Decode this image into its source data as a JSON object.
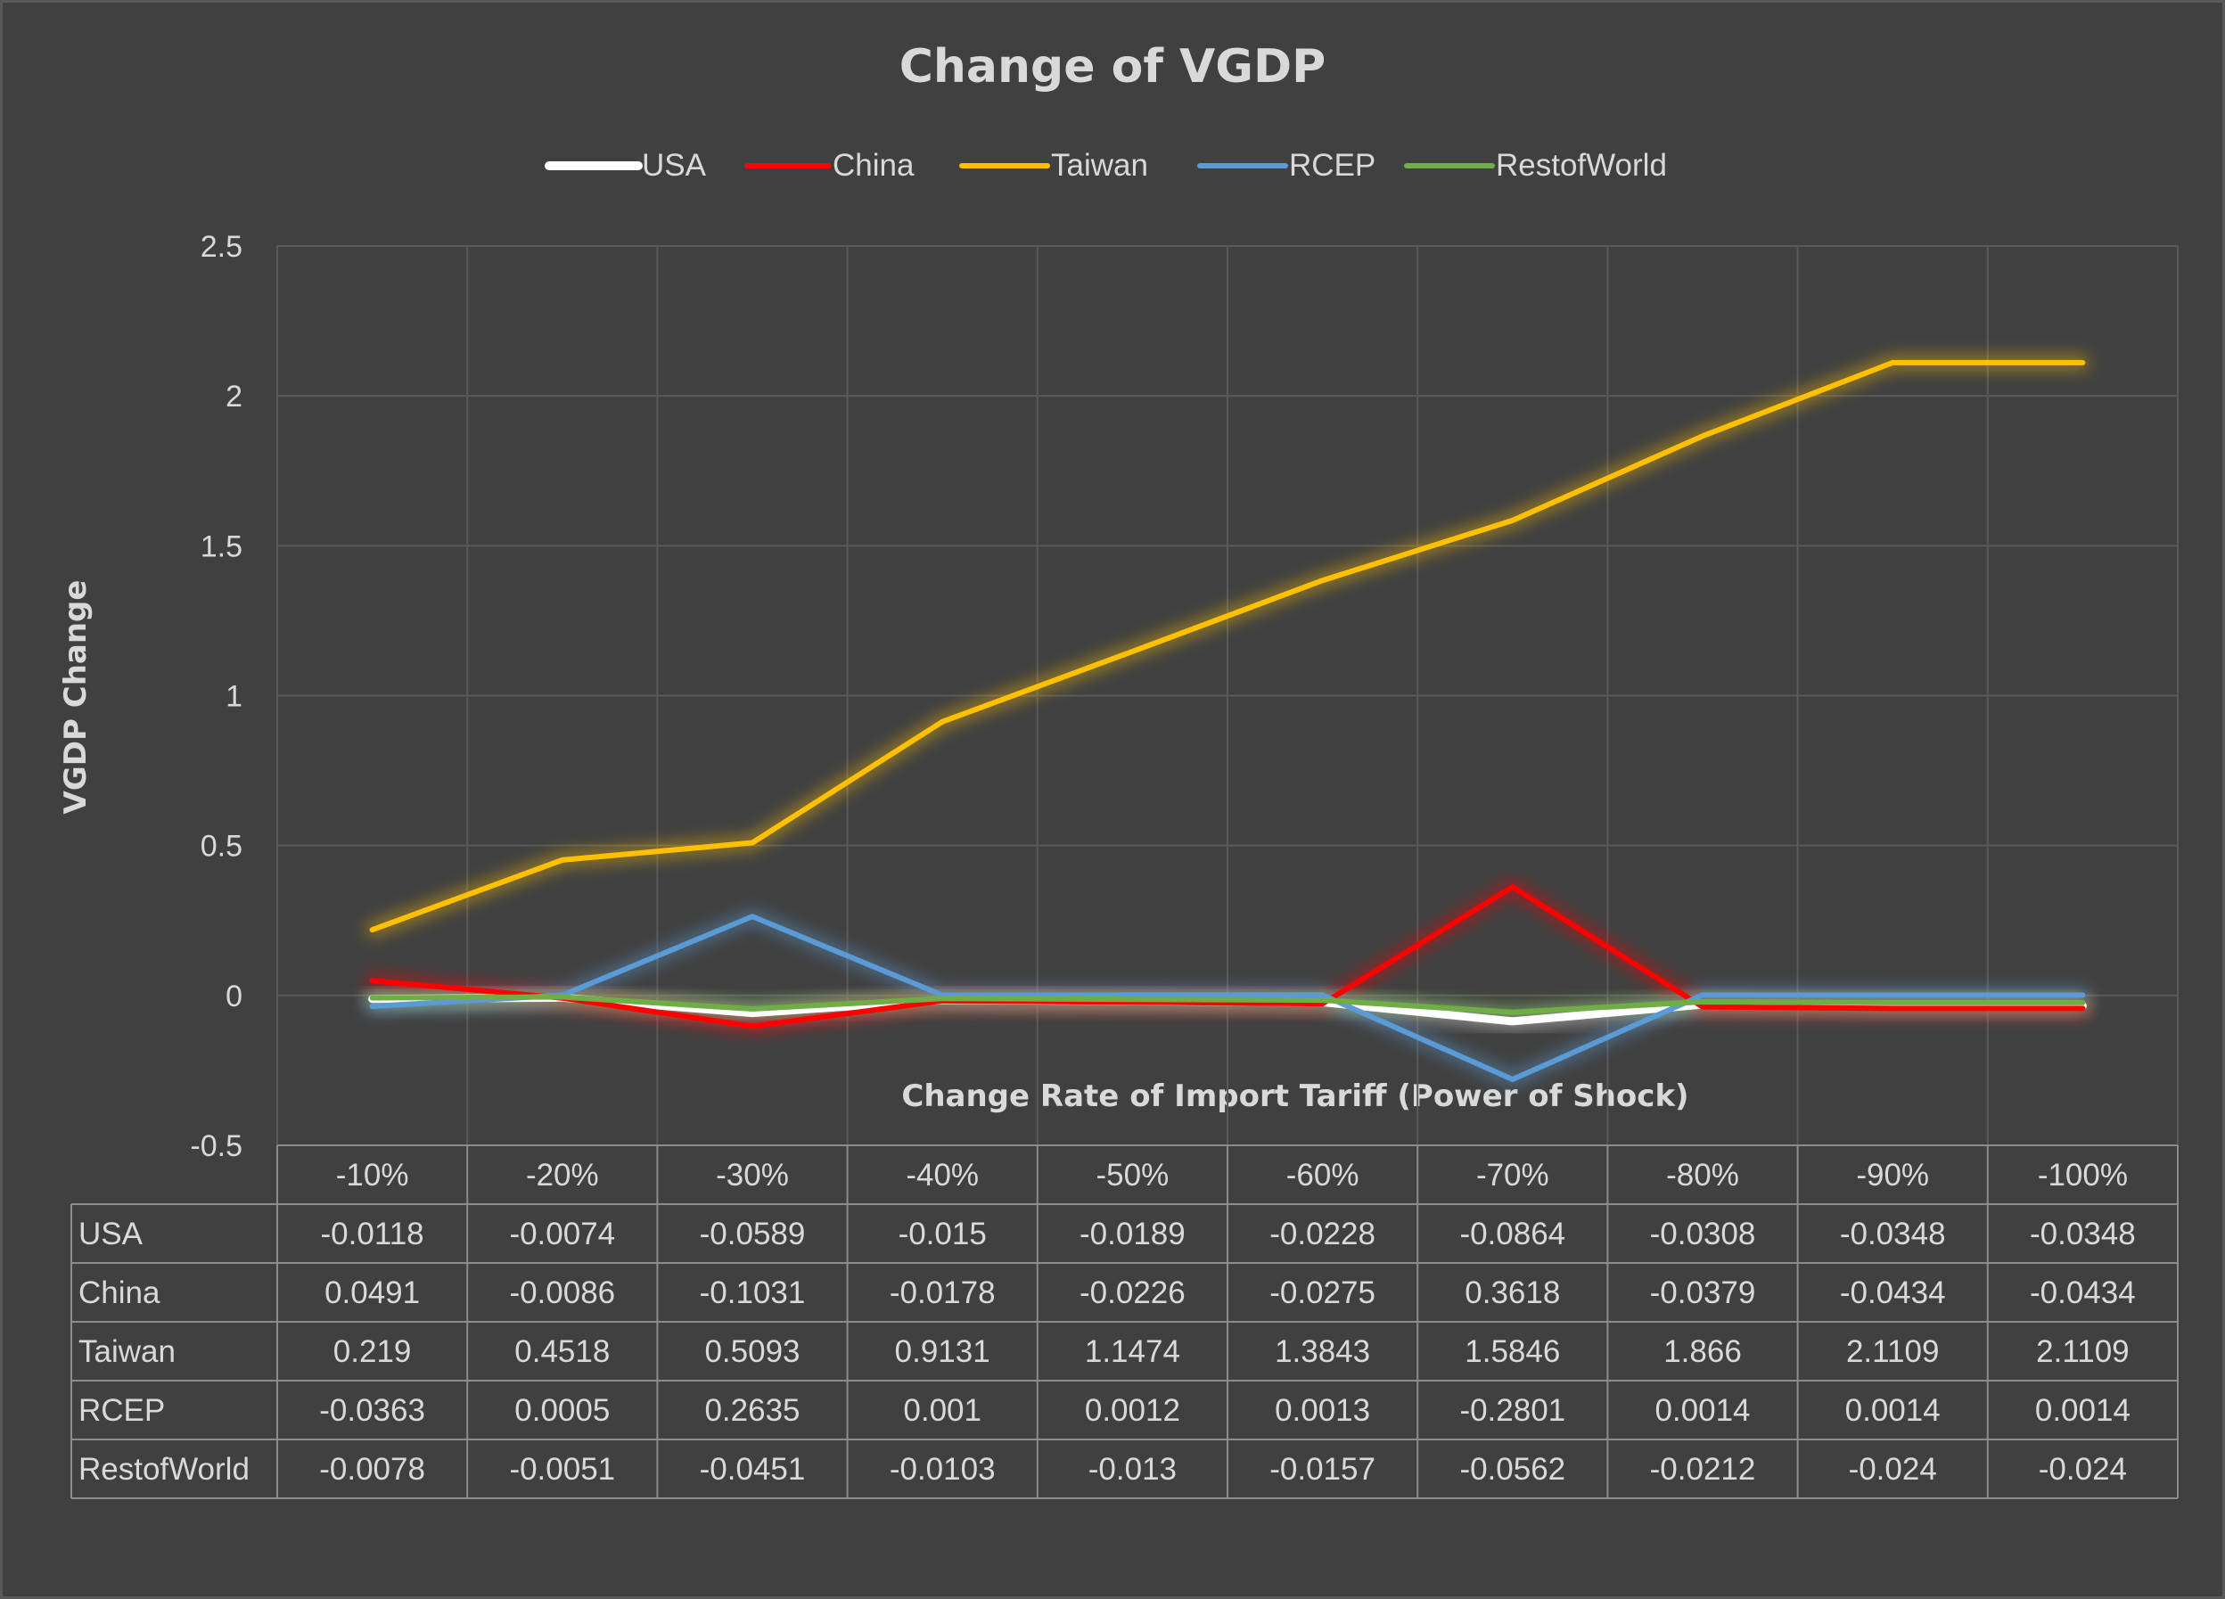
{
  "chart_data": {
    "type": "line",
    "title": "Change of VGDP",
    "xlabel": "Change Rate of Import Tariff (Power of Shock)",
    "ylabel": "VGDP Change",
    "categories": [
      "-10%",
      "-20%",
      "-30%",
      "-40%",
      "-50%",
      "-60%",
      "-70%",
      "-80%",
      "-90%",
      "-100%"
    ],
    "y_ticks": [
      "-0.5",
      "0",
      "0.5",
      "1",
      "1.5",
      "2",
      "2.5"
    ],
    "ylim": [
      -0.5,
      2.5
    ],
    "grid": true,
    "legend_position": "top",
    "data_table": true,
    "series": [
      {
        "name": "USA",
        "color": "#ffffff",
        "values": [
          -0.0118,
          -0.0074,
          -0.0589,
          -0.015,
          -0.0189,
          -0.0228,
          -0.0864,
          -0.0308,
          -0.0348,
          -0.0348
        ],
        "labels": [
          "-0.0118",
          "-0.0074",
          "-0.0589",
          "-0.015",
          "-0.0189",
          "-0.0228",
          "-0.0864",
          "-0.0308",
          "-0.0348",
          "-0.0348"
        ]
      },
      {
        "name": "China",
        "color": "#ff0000",
        "values": [
          0.0491,
          -0.0086,
          -0.1031,
          -0.0178,
          -0.0226,
          -0.0275,
          0.3618,
          -0.0379,
          -0.0434,
          -0.0434
        ],
        "labels": [
          "0.0491",
          "-0.0086",
          "-0.1031",
          "-0.0178",
          "-0.0226",
          "-0.0275",
          "0.3618",
          "-0.0379",
          "-0.0434",
          "-0.0434"
        ]
      },
      {
        "name": "Taiwan",
        "color": "#ffc000",
        "values": [
          0.219,
          0.4518,
          0.5093,
          0.9131,
          1.1474,
          1.3843,
          1.5846,
          1.866,
          2.1109,
          2.1109
        ],
        "labels": [
          "0.219",
          "0.4518",
          "0.5093",
          "0.9131",
          "1.1474",
          "1.3843",
          "1.5846",
          "1.866",
          "2.1109",
          "2.1109"
        ]
      },
      {
        "name": "RCEP",
        "color": "#5b9bd5",
        "values": [
          -0.0363,
          0.0005,
          0.2635,
          0.001,
          0.0012,
          0.0013,
          -0.2801,
          0.0014,
          0.0014,
          0.0014
        ],
        "labels": [
          "-0.0363",
          "0.0005",
          "0.2635",
          "0.001",
          "0.0012",
          "0.0013",
          "-0.2801",
          "0.0014",
          "0.0014",
          "0.0014"
        ]
      },
      {
        "name": "RestofWorld",
        "color": "#70ad47",
        "values": [
          -0.0078,
          -0.0051,
          -0.0451,
          -0.0103,
          -0.013,
          -0.0157,
          -0.0562,
          -0.0212,
          -0.024,
          -0.024
        ],
        "labels": [
          "-0.0078",
          "-0.0051",
          "-0.0451",
          "-0.0103",
          "-0.013",
          "-0.0157",
          "-0.0562",
          "-0.0212",
          "-0.024",
          "-0.024"
        ]
      }
    ]
  }
}
